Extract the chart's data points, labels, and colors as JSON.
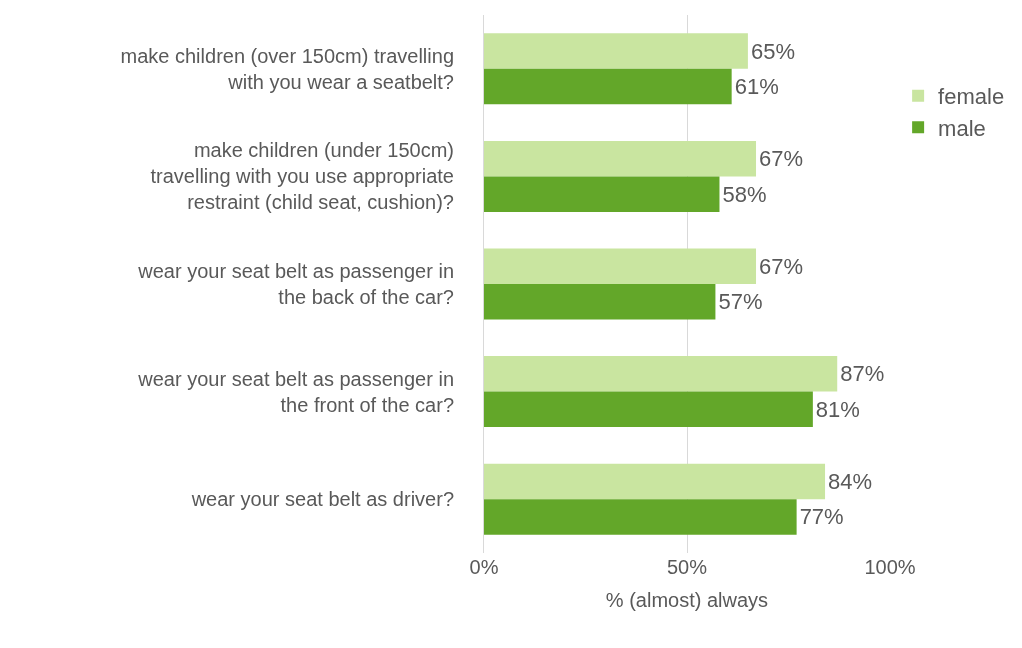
{
  "chart_data": {
    "type": "bar",
    "orientation": "horizontal",
    "xlabel": "% (almost) always",
    "categories": [
      "make children (over 150cm) travelling with you wear a seatbelt?",
      "make children (under 150cm) travelling with you use appropriate restraint (child seat, cushion)?",
      "wear your seat belt as passenger in the back of the car?",
      "wear your seat belt as passenger in the front of the car?",
      "wear your seat belt as driver?"
    ],
    "series": [
      {
        "name": "female",
        "color": "#c9e5a0",
        "values": [
          65,
          67,
          67,
          87,
          84
        ],
        "value_labels": [
          "65%",
          "67%",
          "67%",
          "87%",
          "84%"
        ]
      },
      {
        "name": "male",
        "color": "#63a729",
        "values": [
          61,
          58,
          57,
          81,
          77
        ],
        "value_labels": [
          "61%",
          "58%",
          "57%",
          "81%",
          "77%"
        ]
      }
    ],
    "xlim": [
      0,
      100
    ],
    "xticks": [
      {
        "value": 0,
        "label": "0%"
      },
      {
        "value": 50,
        "label": "50%"
      },
      {
        "value": 100,
        "label": "100%"
      }
    ],
    "grid": "x",
    "legend": "right"
  }
}
